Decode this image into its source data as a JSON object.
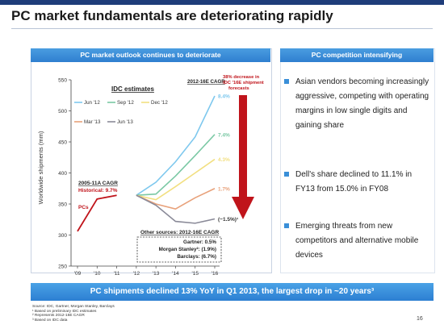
{
  "slide": {
    "title": "PC market fundamentals are deteriorating rapidly",
    "left_header": "PC market outlook continues to deteriorate",
    "right_header": "PC competition intensifying",
    "banner": "PC shipments declined 13% YoY in Q1 2013, the largest drop in ~20 years³",
    "page_number": "16",
    "colors": {
      "accent": "#2f7fd0",
      "title_bar": "#1f3d7a",
      "arrow": "#c0141b"
    }
  },
  "bullets": [
    {
      "text": "Asian vendors becoming increasingly aggressive, competing with operating margins in low single digits and gaining share"
    },
    {
      "text": "Dell's share declined to 11.1% in FY13 from 15.0% in FY08"
    },
    {
      "text": "Emerging threats from new competitors and alternative mobile devices"
    }
  ],
  "footnotes": [
    "Source: IDC, Gartner, Morgan Stanley, Barclays",
    "¹ Based on preliminary IDC estimates",
    "² Represents 2012-16E CAGR",
    "³ Based on IDC data"
  ],
  "chart_data": {
    "type": "line",
    "ylabel": "Worldwide shipments (mm)",
    "ylim": [
      250,
      550
    ],
    "yticks": [
      "550",
      "500",
      "450",
      "400",
      "350",
      "300",
      "250"
    ],
    "xlabels": [
      "'09",
      "'10",
      "'11",
      "'12",
      "'13",
      "'14",
      "'15",
      "'16"
    ],
    "legend_title": "IDC estimates",
    "historical": {
      "name": "PCs",
      "x": [
        "'09",
        "'10",
        "'11"
      ],
      "values": [
        306,
        358,
        364
      ]
    },
    "series": [
      {
        "name": "Jun '12",
        "color": "#7ec8ee",
        "values": [
          364,
          385,
          418,
          458,
          524
        ],
        "cagr": "8.4%"
      },
      {
        "name": "Sep '12",
        "color": "#7ac8a4",
        "values": [
          364,
          366,
          395,
          428,
          462
        ],
        "cagr": "7.4%"
      },
      {
        "name": "Dec '12",
        "color": "#f2df80",
        "values": [
          364,
          357,
          378,
          400,
          422
        ],
        "cagr": "4.3%"
      },
      {
        "name": "Mar '13",
        "color": "#e8a17a",
        "values": [
          364,
          350,
          342,
          360,
          375
        ],
        "cagr": "1.7%"
      },
      {
        "name": "Jun '13",
        "color": "#8a8a98",
        "values": [
          364,
          348,
          322,
          319,
          326
        ],
        "cagr": "(~1.5%)¹"
      }
    ],
    "forecast_x": [
      "'12",
      "'13",
      "'14",
      "'15",
      "'16"
    ],
    "annotations": {
      "cagr_header": "2012-16E CAGR",
      "decrease_note": "38% decrease in IDC '16E shipment forecasts",
      "historical_title": "2005-11A CAGR",
      "historical_value": "Historical: 9.7%",
      "other_sources_title": "Other sources: 2012-16E CAGR",
      "other_sources": [
        "Gartner: 0.5%",
        "Morgan Stanley²: (1.9%)",
        "Barclays: (6.7%)"
      ]
    }
  }
}
